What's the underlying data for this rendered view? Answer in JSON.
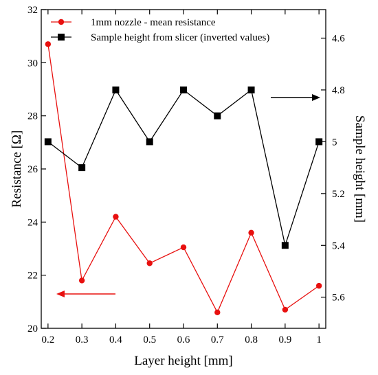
{
  "chart_data": {
    "type": "line",
    "x": [
      0.2,
      0.3,
      0.4,
      0.5,
      0.6,
      0.7,
      0.8,
      0.9,
      1.0
    ],
    "xlim": [
      0.18,
      1.02
    ],
    "xticks": [
      "0.2",
      "0.3",
      "0.4",
      "0.5",
      "0.6",
      "0.7",
      "0.8",
      "0.9",
      "1"
    ],
    "xlabel": "Layer height [mm]",
    "ylabel_left": "Resistance [Ω]",
    "ylabel_right": "Sample height [mm]",
    "ylim_left": [
      20,
      32
    ],
    "yticks_left": [
      "20",
      "22",
      "24",
      "26",
      "28",
      "30",
      "32"
    ],
    "ylim_right": [
      5.72,
      4.49
    ],
    "yticks_right": [
      "4.6",
      "4.8",
      "5",
      "5.2",
      "5.4",
      "5.6"
    ],
    "right_axis_inverted": true,
    "grid": false,
    "legend_position": "top-left",
    "series": [
      {
        "name": "1mm nozzle - mean resistance",
        "axis": "left",
        "color": "#e8100f",
        "marker": "circle",
        "values": [
          30.7,
          21.8,
          24.2,
          22.45,
          23.05,
          20.6,
          23.6,
          20.7,
          21.6
        ]
      },
      {
        "name": "Sample height from slicer (inverted values)",
        "axis": "right",
        "color": "#000000",
        "marker": "square",
        "values": [
          5.0,
          5.1,
          4.8,
          5.0,
          4.8,
          4.9,
          4.8,
          5.4,
          5.0
        ]
      }
    ],
    "annotations": [
      {
        "type": "arrow",
        "direction": "left",
        "color": "#e8100f",
        "points_to": "left-axis"
      },
      {
        "type": "arrow",
        "direction": "right",
        "color": "#000000",
        "points_to": "right-axis"
      }
    ]
  }
}
